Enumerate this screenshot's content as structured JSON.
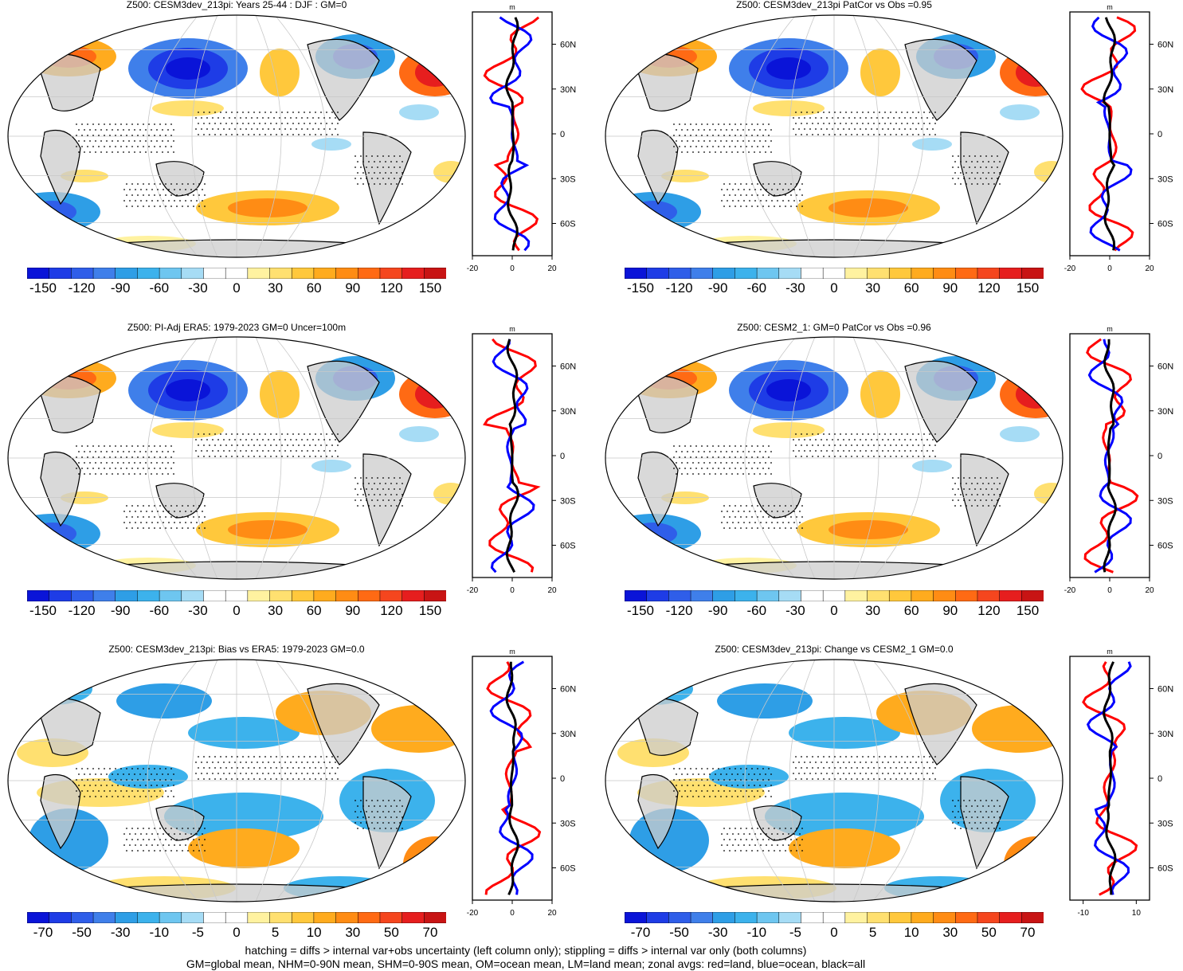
{
  "panels": [
    {
      "title": "Z500: CESM3dev_213pi: Years 25-44 : DJF : GM=0",
      "scheme": "z"
    },
    {
      "title": "Z500: CESM3dev_213pi PatCor vs Obs =0.95",
      "scheme": "z"
    },
    {
      "title": "Z500: PI-Adj ERA5: 1979-2023 GM=0 Uncer=100m",
      "scheme": "z"
    },
    {
      "title": "Z500: CESM2_1: GM=0 PatCor vs Obs =0.96",
      "scheme": "z"
    },
    {
      "title": "Z500: CESM3dev_213pi: Bias vs ERA5: 1979-2023 GM=0.0",
      "scheme": "d"
    },
    {
      "title": "Z500: CESM3dev_213pi: Change vs CESM2_1 GM=0.0",
      "scheme": "d"
    }
  ],
  "zonal": {
    "unit": "m",
    "lat_labels": [
      "60N",
      "30N",
      "0",
      "30S",
      "60S"
    ],
    "x_ticks_standard": [
      "-20",
      "0",
      "20"
    ],
    "x_ticks_change": [
      "-10",
      "10"
    ]
  },
  "colorbars": {
    "z_labels": [
      "-150",
      "-120",
      "-90",
      "-60",
      "-30",
      "0",
      "30",
      "60",
      "90",
      "120",
      "150"
    ],
    "d_labels": [
      "-70",
      "-50",
      "-30",
      "-10",
      "-5",
      "0",
      "5",
      "10",
      "30",
      "50",
      "70"
    ],
    "colors": [
      "#0a14d8",
      "#1e3ce6",
      "#2f5ee9",
      "#3f7fea",
      "#2e9ee6",
      "#3cb2ec",
      "#6ec6f0",
      "#a6dcf5",
      "#ffffff",
      "#ffffff",
      "#fff2a0",
      "#ffe070",
      "#ffc83c",
      "#ffab1e",
      "#ff8c14",
      "#ff6a14",
      "#f5461e",
      "#e61e1e",
      "#c81414"
    ]
  },
  "footer": {
    "line1": "hatching = diffs > internal var+obs uncertainty (left column only); stippling = diffs > internal var only (both columns)",
    "line2": "GM=global mean, NHM=0-90N mean, SHM=0-90S mean, OM=ocean mean, LM=land mean; zonal avgs: red=land, blue=ocean, black=all"
  }
}
